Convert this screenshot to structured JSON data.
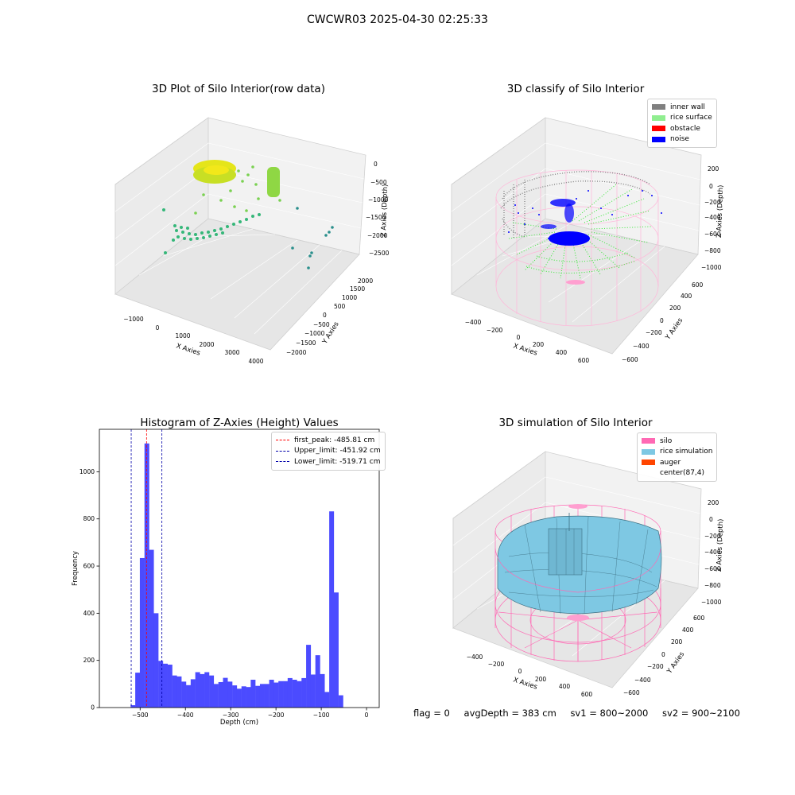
{
  "figure_title": "CWCWR03 2025-04-30 02:25:33",
  "footer": {
    "flag": "flag = 0",
    "avg_depth": "avgDepth = 383 cm",
    "sv1": "sv1 = 800~2000",
    "sv2": "sv2 = 900~2100"
  },
  "colors": {
    "inner_wall": "#808080",
    "rice_surface": "#90ee90",
    "obstacle": "#ff0000",
    "noise": "#0000ff",
    "silo": "#ff69b4",
    "rice_simulation": "#7ec8e3",
    "auger": "#ff4500",
    "hist_bar": "#4b4bff",
    "first_peak": "#ff0000",
    "limits": "#0000aa"
  },
  "chart_data": [
    {
      "type": "scatter",
      "title": "3D Plot of Silo Interior(row data)",
      "xlabel": "X Axies",
      "ylabel": "Y Axies",
      "zlabel": "Z Axies (Depth)",
      "x_ticks": [
        "−1000",
        "0",
        "1000",
        "2000",
        "3000",
        "4000"
      ],
      "y_ticks": [
        "−2000",
        "−1500",
        "−1000",
        "−500",
        "0",
        "500",
        "1000",
        "1500",
        "2000"
      ],
      "z_ticks": [
        "0",
        "−500",
        "−1000",
        "−1500",
        "−2000",
        "−2500"
      ],
      "colormap": "viridis"
    },
    {
      "type": "scatter",
      "title": "3D classify of Silo Interior",
      "xlabel": "X Axies",
      "ylabel": "Y Axies",
      "zlabel": "Z Axies (Depth)",
      "x_ticks": [
        "−400",
        "−200",
        "0",
        "200",
        "400",
        "600"
      ],
      "y_ticks": [
        "−600",
        "−400",
        "−200",
        "0",
        "200",
        "400",
        "600"
      ],
      "z_ticks": [
        "200",
        "0",
        "−200",
        "−400",
        "−600",
        "−800",
        "−1000"
      ],
      "legend": [
        "inner wall",
        "rice surface",
        "obstacle",
        "noise"
      ]
    },
    {
      "type": "bar",
      "title": "Histogram of Z-Axies (Height) Values",
      "xlabel": "Depth (cm)",
      "ylabel": "Frequency",
      "xlim": [
        -590,
        28
      ],
      "ylim": [
        0,
        1180
      ],
      "x_ticks": [
        -500,
        -400,
        -300,
        -200,
        -100,
        0
      ],
      "x_tick_labels": [
        "−500",
        "−400",
        "−300",
        "−200",
        "−100",
        "0"
      ],
      "y_ticks": [
        0,
        200,
        400,
        600,
        800,
        1000
      ],
      "y_tick_labels": [
        "0",
        "200",
        "400",
        "600",
        "800",
        "1000"
      ],
      "bin_start": -521,
      "bin_width": 10.2,
      "values": [
        10,
        148,
        634,
        1120,
        669,
        400,
        198,
        186,
        182,
        136,
        132,
        110,
        95,
        120,
        150,
        142,
        150,
        136,
        100,
        108,
        126,
        110,
        94,
        80,
        90,
        87,
        118,
        92,
        100,
        100,
        118,
        106,
        112,
        112,
        125,
        118,
        112,
        125,
        266,
        140,
        222,
        142,
        66,
        832,
        488,
        52
      ],
      "lines": [
        {
          "name": "first_peak: -485.81 cm",
          "x": -485.81,
          "color": "#ff0000"
        },
        {
          "name": "Upper_limit: -451.92 cm",
          "x": -451.92,
          "color": "#0000aa"
        },
        {
          "name": "Lower_limit: -519.71 cm",
          "x": -519.71,
          "color": "#0000aa"
        }
      ],
      "legend_position": "upper right"
    },
    {
      "type": "area",
      "title": "3D simulation of Silo Interior",
      "xlabel": "X Axies",
      "ylabel": "Y Axies",
      "zlabel": "Z Axies (Depth)",
      "x_ticks": [
        "−400",
        "−200",
        "0",
        "200",
        "400",
        "600"
      ],
      "y_ticks": [
        "−600",
        "−400",
        "−200",
        "0",
        "200",
        "400",
        "600"
      ],
      "z_ticks": [
        "200",
        "0",
        "−200",
        "−400",
        "−600",
        "−800",
        "−1000"
      ],
      "legend": [
        "silo",
        "rice simulation",
        "auger",
        "center(87,4)"
      ]
    }
  ]
}
